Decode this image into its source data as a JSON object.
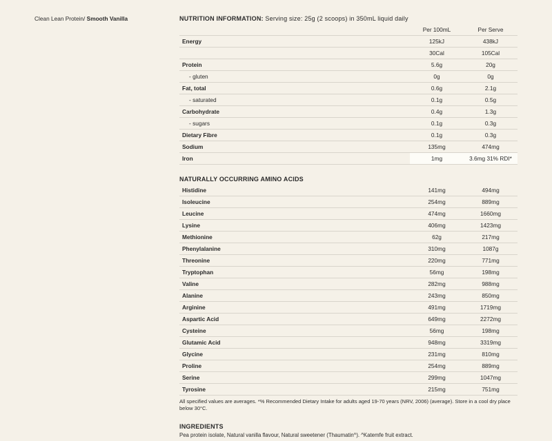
{
  "product": {
    "line1": "Clean Lean Protein/",
    "line2": "Smooth Vanilla"
  },
  "nutrition": {
    "header": "NUTRITION INFORMATION:",
    "serving": "Serving size: 25g (2 scoops) in 350mL liquid daily",
    "col1": "Per 100mL",
    "col2": "Per Serve",
    "rows": [
      {
        "label": "Energy",
        "indent": false,
        "v1": "125kJ",
        "v2": "438kJ"
      },
      {
        "label": "",
        "indent": false,
        "v1": "30Cal",
        "v2": "105Cal"
      },
      {
        "label": "Protein",
        "indent": false,
        "v1": "5.6g",
        "v2": "20g"
      },
      {
        "label": "- gluten",
        "indent": true,
        "v1": "0g",
        "v2": "0g"
      },
      {
        "label": "Fat, total",
        "indent": false,
        "v1": "0.6g",
        "v2": "2.1g"
      },
      {
        "label": "- saturated",
        "indent": true,
        "v1": "0.1g",
        "v2": "0.5g"
      },
      {
        "label": "Carbohydrate",
        "indent": false,
        "v1": "0.4g",
        "v2": "1.3g"
      },
      {
        "label": "- sugars",
        "indent": true,
        "v1": "0.1g",
        "v2": "0.3g"
      },
      {
        "label": "Dietary Fibre",
        "indent": false,
        "v1": "0.1g",
        "v2": "0.3g"
      },
      {
        "label": "Sodium",
        "indent": false,
        "v1": "135mg",
        "v2": "474mg"
      },
      {
        "label": "Iron",
        "indent": false,
        "v1": "1mg",
        "v2": "3.6mg 31% RDI*",
        "highlight": true
      }
    ]
  },
  "aminos": {
    "header": "NATURALLY OCCURRING AMINO ACIDS",
    "rows": [
      {
        "label": "Histidine",
        "v1": "141mg",
        "v2": "494mg"
      },
      {
        "label": "Isoleucine",
        "v1": "254mg",
        "v2": "889mg"
      },
      {
        "label": "Leucine",
        "v1": "474mg",
        "v2": "1660mg"
      },
      {
        "label": "Lysine",
        "v1": "406mg",
        "v2": "1423mg"
      },
      {
        "label": "Methionine",
        "v1": "62g",
        "v2": "217mg"
      },
      {
        "label": "Phenylalanine",
        "v1": "310mg",
        "v2": "1087g"
      },
      {
        "label": "Threonine",
        "v1": "220mg",
        "v2": "771mg"
      },
      {
        "label": "Tryptophan",
        "v1": "56mg",
        "v2": "198mg"
      },
      {
        "label": "Valine",
        "v1": "282mg",
        "v2": "988mg"
      },
      {
        "label": "Alanine",
        "v1": "243mg",
        "v2": "850mg"
      },
      {
        "label": "Arginine",
        "v1": "491mg",
        "v2": "1719mg"
      },
      {
        "label": "Aspartic Acid",
        "v1": "649mg",
        "v2": "2272mg"
      },
      {
        "label": "Cysteine",
        "v1": "56mg",
        "v2": "198mg"
      },
      {
        "label": "Glutamic Acid",
        "v1": "948mg",
        "v2": "3319mg"
      },
      {
        "label": "Glycine",
        "v1": "231mg",
        "v2": "810mg"
      },
      {
        "label": "Proline",
        "v1": "254mg",
        "v2": "889mg"
      },
      {
        "label": "Serine",
        "v1": "299mg",
        "v2": "1047mg"
      },
      {
        "label": "Tyrosine",
        "v1": "215mg",
        "v2": "751mg"
      }
    ],
    "footnote": "All specified values are averages. *% Recommended Dietary Intake for adults aged 19-70 years (NRV, 2006) (average).  Store in a cool dry place below 30°C."
  },
  "ingredients": {
    "header": "INGREDIENTS",
    "text": "Pea protein isolate, Natural vanilla flavour, Natural sweetener (Thaumatin^). ^Katemfe fruit extract."
  }
}
